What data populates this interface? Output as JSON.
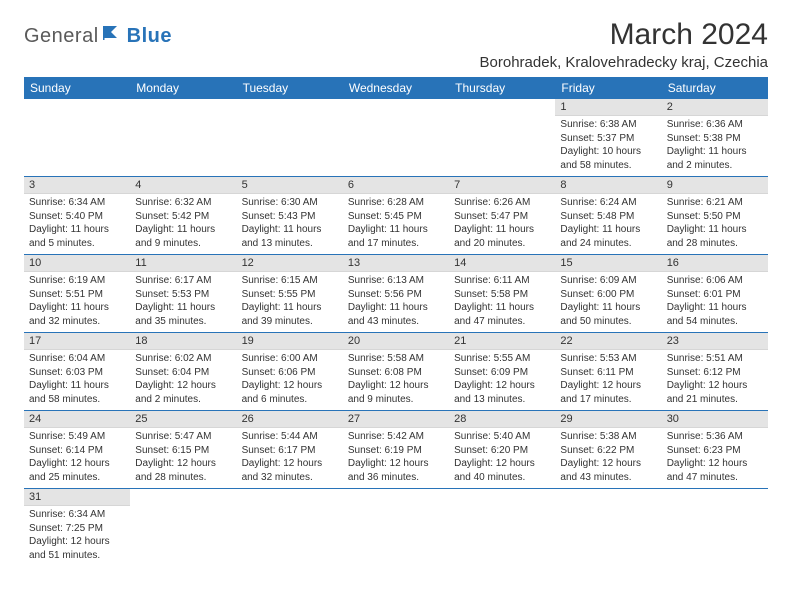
{
  "logo": {
    "part1": "General",
    "part2": "Blue"
  },
  "title": "March 2024",
  "location": "Borohradek, Kralovehradecky kraj, Czechia",
  "colors": {
    "header_bg": "#2873b8",
    "header_text": "#ffffff",
    "daynum_bg": "#e4e4e4",
    "row_border": "#2873b8",
    "text": "#333333",
    "logo_gray": "#5a5a5a",
    "logo_blue": "#2873b8"
  },
  "day_headers": [
    "Sunday",
    "Monday",
    "Tuesday",
    "Wednesday",
    "Thursday",
    "Friday",
    "Saturday"
  ],
  "weeks": [
    [
      null,
      null,
      null,
      null,
      null,
      {
        "n": "1",
        "sr": "Sunrise: 6:38 AM",
        "ss": "Sunset: 5:37 PM",
        "dl": "Daylight: 10 hours and 58 minutes."
      },
      {
        "n": "2",
        "sr": "Sunrise: 6:36 AM",
        "ss": "Sunset: 5:38 PM",
        "dl": "Daylight: 11 hours and 2 minutes."
      }
    ],
    [
      {
        "n": "3",
        "sr": "Sunrise: 6:34 AM",
        "ss": "Sunset: 5:40 PM",
        "dl": "Daylight: 11 hours and 5 minutes."
      },
      {
        "n": "4",
        "sr": "Sunrise: 6:32 AM",
        "ss": "Sunset: 5:42 PM",
        "dl": "Daylight: 11 hours and 9 minutes."
      },
      {
        "n": "5",
        "sr": "Sunrise: 6:30 AM",
        "ss": "Sunset: 5:43 PM",
        "dl": "Daylight: 11 hours and 13 minutes."
      },
      {
        "n": "6",
        "sr": "Sunrise: 6:28 AM",
        "ss": "Sunset: 5:45 PM",
        "dl": "Daylight: 11 hours and 17 minutes."
      },
      {
        "n": "7",
        "sr": "Sunrise: 6:26 AM",
        "ss": "Sunset: 5:47 PM",
        "dl": "Daylight: 11 hours and 20 minutes."
      },
      {
        "n": "8",
        "sr": "Sunrise: 6:24 AM",
        "ss": "Sunset: 5:48 PM",
        "dl": "Daylight: 11 hours and 24 minutes."
      },
      {
        "n": "9",
        "sr": "Sunrise: 6:21 AM",
        "ss": "Sunset: 5:50 PM",
        "dl": "Daylight: 11 hours and 28 minutes."
      }
    ],
    [
      {
        "n": "10",
        "sr": "Sunrise: 6:19 AM",
        "ss": "Sunset: 5:51 PM",
        "dl": "Daylight: 11 hours and 32 minutes."
      },
      {
        "n": "11",
        "sr": "Sunrise: 6:17 AM",
        "ss": "Sunset: 5:53 PM",
        "dl": "Daylight: 11 hours and 35 minutes."
      },
      {
        "n": "12",
        "sr": "Sunrise: 6:15 AM",
        "ss": "Sunset: 5:55 PM",
        "dl": "Daylight: 11 hours and 39 minutes."
      },
      {
        "n": "13",
        "sr": "Sunrise: 6:13 AM",
        "ss": "Sunset: 5:56 PM",
        "dl": "Daylight: 11 hours and 43 minutes."
      },
      {
        "n": "14",
        "sr": "Sunrise: 6:11 AM",
        "ss": "Sunset: 5:58 PM",
        "dl": "Daylight: 11 hours and 47 minutes."
      },
      {
        "n": "15",
        "sr": "Sunrise: 6:09 AM",
        "ss": "Sunset: 6:00 PM",
        "dl": "Daylight: 11 hours and 50 minutes."
      },
      {
        "n": "16",
        "sr": "Sunrise: 6:06 AM",
        "ss": "Sunset: 6:01 PM",
        "dl": "Daylight: 11 hours and 54 minutes."
      }
    ],
    [
      {
        "n": "17",
        "sr": "Sunrise: 6:04 AM",
        "ss": "Sunset: 6:03 PM",
        "dl": "Daylight: 11 hours and 58 minutes."
      },
      {
        "n": "18",
        "sr": "Sunrise: 6:02 AM",
        "ss": "Sunset: 6:04 PM",
        "dl": "Daylight: 12 hours and 2 minutes."
      },
      {
        "n": "19",
        "sr": "Sunrise: 6:00 AM",
        "ss": "Sunset: 6:06 PM",
        "dl": "Daylight: 12 hours and 6 minutes."
      },
      {
        "n": "20",
        "sr": "Sunrise: 5:58 AM",
        "ss": "Sunset: 6:08 PM",
        "dl": "Daylight: 12 hours and 9 minutes."
      },
      {
        "n": "21",
        "sr": "Sunrise: 5:55 AM",
        "ss": "Sunset: 6:09 PM",
        "dl": "Daylight: 12 hours and 13 minutes."
      },
      {
        "n": "22",
        "sr": "Sunrise: 5:53 AM",
        "ss": "Sunset: 6:11 PM",
        "dl": "Daylight: 12 hours and 17 minutes."
      },
      {
        "n": "23",
        "sr": "Sunrise: 5:51 AM",
        "ss": "Sunset: 6:12 PM",
        "dl": "Daylight: 12 hours and 21 minutes."
      }
    ],
    [
      {
        "n": "24",
        "sr": "Sunrise: 5:49 AM",
        "ss": "Sunset: 6:14 PM",
        "dl": "Daylight: 12 hours and 25 minutes."
      },
      {
        "n": "25",
        "sr": "Sunrise: 5:47 AM",
        "ss": "Sunset: 6:15 PM",
        "dl": "Daylight: 12 hours and 28 minutes."
      },
      {
        "n": "26",
        "sr": "Sunrise: 5:44 AM",
        "ss": "Sunset: 6:17 PM",
        "dl": "Daylight: 12 hours and 32 minutes."
      },
      {
        "n": "27",
        "sr": "Sunrise: 5:42 AM",
        "ss": "Sunset: 6:19 PM",
        "dl": "Daylight: 12 hours and 36 minutes."
      },
      {
        "n": "28",
        "sr": "Sunrise: 5:40 AM",
        "ss": "Sunset: 6:20 PM",
        "dl": "Daylight: 12 hours and 40 minutes."
      },
      {
        "n": "29",
        "sr": "Sunrise: 5:38 AM",
        "ss": "Sunset: 6:22 PM",
        "dl": "Daylight: 12 hours and 43 minutes."
      },
      {
        "n": "30",
        "sr": "Sunrise: 5:36 AM",
        "ss": "Sunset: 6:23 PM",
        "dl": "Daylight: 12 hours and 47 minutes."
      }
    ],
    [
      {
        "n": "31",
        "sr": "Sunrise: 6:34 AM",
        "ss": "Sunset: 7:25 PM",
        "dl": "Daylight: 12 hours and 51 minutes."
      },
      null,
      null,
      null,
      null,
      null,
      null
    ]
  ]
}
